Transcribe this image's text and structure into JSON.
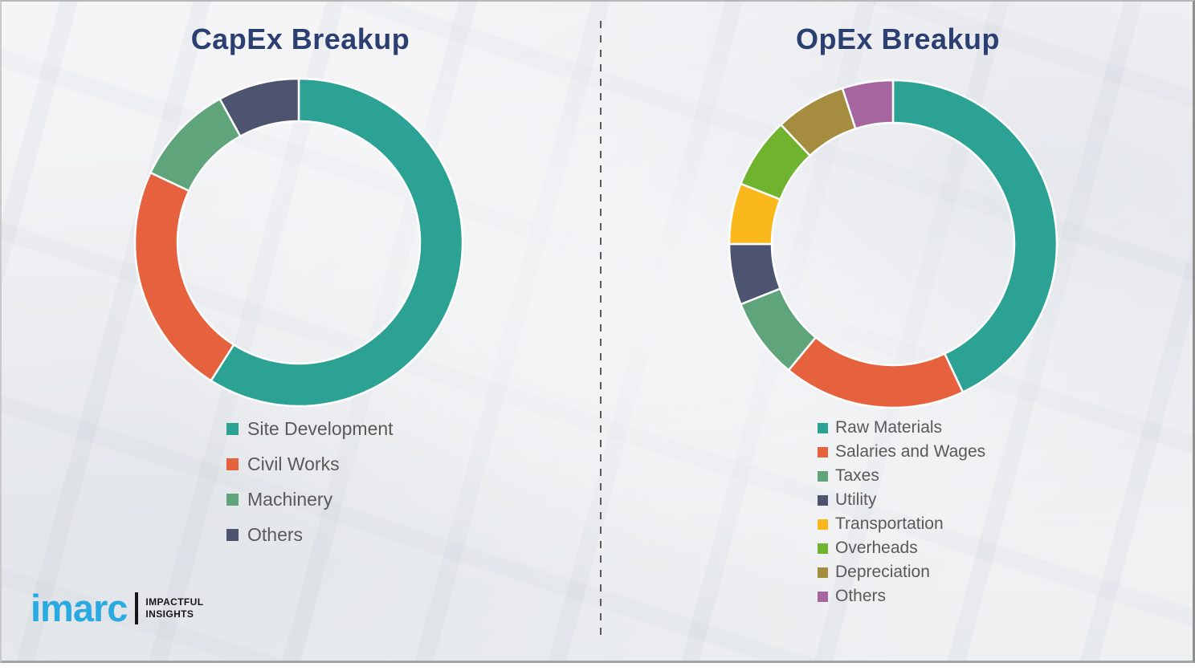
{
  "chart_data": [
    {
      "type": "pie",
      "subtype": "donut",
      "title": "CapEx Breakup",
      "labels": [
        "Site Development",
        "Civil Works",
        "Machinery",
        "Others"
      ],
      "values": [
        59,
        23,
        10,
        8
      ],
      "values_note": "percent shares estimated from arc angles; no numeric labels shown in image",
      "colors": [
        "#2BA294",
        "#E6613D",
        "#5FA47B",
        "#4D5470"
      ],
      "start_angle_deg": 0,
      "direction": "clockwise",
      "legend_position": "below-left"
    },
    {
      "type": "pie",
      "subtype": "donut",
      "title": "OpEx Breakup",
      "labels": [
        "Raw Materials",
        "Salaries and Wages",
        "Taxes",
        "Utility",
        "Transportation",
        "Overheads",
        "Depreciation",
        "Others"
      ],
      "values": [
        43,
        18,
        8,
        6,
        6,
        7,
        7,
        5
      ],
      "values_note": "percent shares estimated from arc angles; no numeric labels shown in image",
      "colors": [
        "#2BA294",
        "#E6613D",
        "#5FA47B",
        "#4D5470",
        "#FBB81C",
        "#6FB32E",
        "#A68C3F",
        "#A566A0"
      ],
      "start_angle_deg": 0,
      "direction": "clockwise",
      "legend_position": "below-left"
    }
  ],
  "branding": {
    "logo_text": "imarc",
    "tagline": [
      "IMPACTFUL",
      "INSIGHTS"
    ],
    "logo_color": "#29ABE2"
  },
  "style": {
    "title_color": "#2C3F73",
    "legend_text_color": "#595959",
    "divider_color": "#5A5A5A",
    "background_color": "#F2F3F4"
  }
}
